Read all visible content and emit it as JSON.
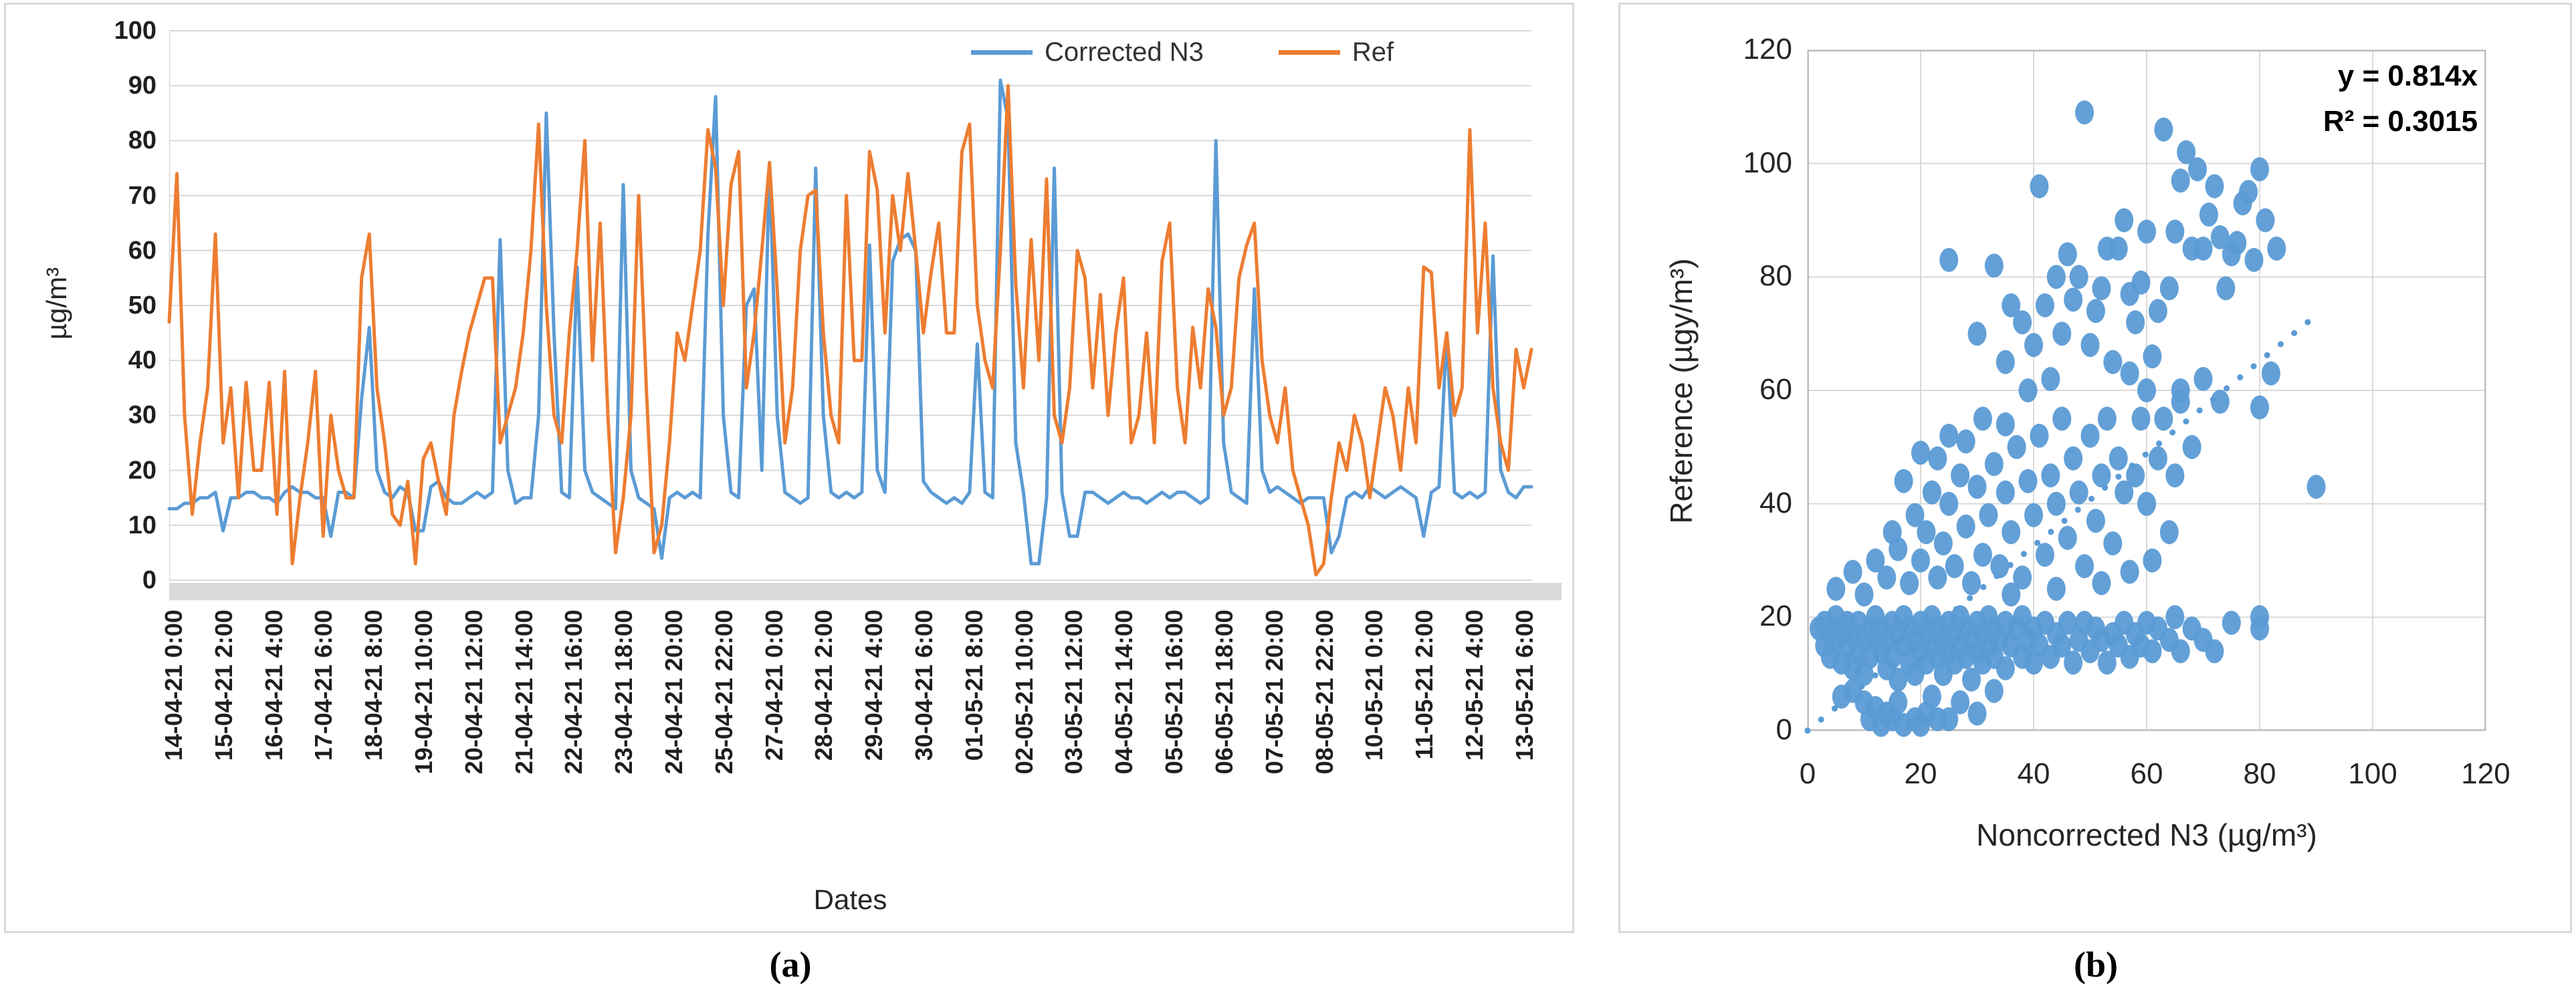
{
  "figure": {
    "panel_a_caption": "(a)",
    "panel_b_caption": "(b)"
  },
  "chart_data": [
    {
      "type": "line",
      "title": "",
      "xlabel": "Dates",
      "ylabel": "µg/m³",
      "ylim": [
        0,
        100
      ],
      "ytick_step": 10,
      "grid": "horizontal",
      "legend_position": "top",
      "x_tick_interval_hours": 26,
      "sample_step_hours": 4,
      "total_hours": 708,
      "x_tick_labels": [
        "14-04-21 0:00",
        "15-04-21 2:00",
        "16-04-21 4:00",
        "17-04-21 6:00",
        "18-04-21 8:00",
        "19-04-21 10:00",
        "20-04-21 12:00",
        "21-04-21 14:00",
        "22-04-21 16:00",
        "23-04-21 18:00",
        "24-04-21 20:00",
        "25-04-21 22:00",
        "27-04-21 0:00",
        "28-04-21 2:00",
        "29-04-21 4:00",
        "30-04-21 6:00",
        "01-05-21 8:00",
        "02-05-21 10:00",
        "03-05-21 12:00",
        "04-05-21 14:00",
        "05-05-21 16:00",
        "06-05-21 18:00",
        "07-05-21 20:00",
        "08-05-21 22:00",
        "10-05-21 0:00",
        "11-05-21 2:00",
        "12-05-21 4:00",
        "13-05-21 6:00"
      ],
      "series": [
        {
          "name": "Corrected N3",
          "color": "#5B9BD5",
          "values": [
            13,
            13,
            14,
            14,
            15,
            15,
            16,
            9,
            15,
            15,
            16,
            16,
            15,
            15,
            14,
            16,
            17,
            16,
            16,
            15,
            15,
            8,
            16,
            16,
            15,
            33,
            46,
            20,
            16,
            15,
            17,
            16,
            9,
            9,
            17,
            18,
            15,
            14,
            14,
            15,
            16,
            15,
            16,
            62,
            20,
            14,
            15,
            15,
            30,
            85,
            45,
            16,
            15,
            57,
            20,
            16,
            15,
            14,
            13,
            72,
            20,
            15,
            14,
            13,
            4,
            15,
            16,
            15,
            16,
            15,
            63,
            88,
            30,
            16,
            15,
            50,
            53,
            20,
            76,
            30,
            16,
            15,
            14,
            15,
            75,
            30,
            16,
            15,
            16,
            15,
            16,
            61,
            20,
            16,
            58,
            62,
            63,
            60,
            18,
            16,
            15,
            14,
            15,
            14,
            16,
            43,
            16,
            15,
            91,
            84,
            25,
            16,
            3,
            3,
            15,
            75,
            16,
            8,
            8,
            16,
            16,
            15,
            14,
            15,
            16,
            15,
            15,
            14,
            15,
            16,
            15,
            16,
            16,
            15,
            14,
            15,
            80,
            25,
            16,
            15,
            14,
            53,
            20,
            16,
            17,
            16,
            15,
            14,
            15,
            15,
            15,
            5,
            8,
            15,
            16,
            15,
            17,
            16,
            15,
            16,
            17,
            16,
            15,
            8,
            16,
            17,
            45,
            16,
            15,
            16,
            15,
            16,
            59,
            20,
            16,
            15,
            17,
            17
          ]
        },
        {
          "name": "Ref",
          "color": "#ED7D31",
          "values": [
            47,
            74,
            30,
            12,
            25,
            35,
            63,
            25,
            35,
            15,
            36,
            20,
            20,
            36,
            12,
            38,
            3,
            15,
            25,
            38,
            8,
            30,
            20,
            15,
            15,
            55,
            63,
            35,
            25,
            12,
            10,
            18,
            3,
            22,
            25,
            18,
            12,
            30,
            38,
            45,
            50,
            55,
            55,
            25,
            30,
            35,
            45,
            60,
            83,
            50,
            30,
            25,
            45,
            60,
            80,
            40,
            65,
            30,
            5,
            15,
            30,
            70,
            35,
            5,
            10,
            25,
            45,
            40,
            50,
            60,
            82,
            75,
            50,
            72,
            78,
            35,
            45,
            60,
            76,
            53,
            25,
            35,
            60,
            70,
            71,
            45,
            30,
            25,
            70,
            40,
            40,
            78,
            71,
            45,
            70,
            60,
            74,
            60,
            45,
            56,
            65,
            45,
            45,
            78,
            83,
            50,
            40,
            35,
            60,
            90,
            54,
            35,
            62,
            40,
            73,
            30,
            25,
            35,
            60,
            55,
            35,
            52,
            30,
            45,
            55,
            25,
            30,
            45,
            25,
            58,
            65,
            35,
            25,
            46,
            35,
            53,
            46,
            30,
            35,
            55,
            61,
            65,
            40,
            30,
            25,
            35,
            20,
            15,
            10,
            1,
            3,
            15,
            25,
            20,
            30,
            25,
            15,
            25,
            35,
            30,
            20,
            35,
            25,
            57,
            56,
            35,
            45,
            30,
            35,
            82,
            45,
            65,
            35,
            25,
            20,
            42,
            35,
            42
          ]
        }
      ]
    },
    {
      "type": "scatter",
      "xlabel": "Noncorrected N3 (µg/m³)",
      "ylabel": "Reference (µgy/m³)",
      "xlim": [
        0,
        120
      ],
      "ylim": [
        0,
        120
      ],
      "xticks": [
        0,
        20,
        40,
        60,
        80,
        100,
        120
      ],
      "yticks": [
        0,
        20,
        40,
        60,
        80,
        100,
        120
      ],
      "grid": "both",
      "marker_color": "#5B9BD5",
      "trendline": {
        "equation": "y = 0.814x",
        "r_squared": "R² = 0.3015",
        "slope": 0.814,
        "x_start": 0,
        "x_end": 90,
        "style": "dotted",
        "color": "#5B9BD5"
      },
      "points": [
        [
          2,
          18
        ],
        [
          3,
          15
        ],
        [
          3,
          19
        ],
        [
          4,
          13
        ],
        [
          4,
          17
        ],
        [
          5,
          16
        ],
        [
          5,
          20
        ],
        [
          6,
          12
        ],
        [
          6,
          18
        ],
        [
          7,
          15
        ],
        [
          7,
          19
        ],
        [
          8,
          11
        ],
        [
          8,
          17
        ],
        [
          9,
          14
        ],
        [
          9,
          19
        ],
        [
          10,
          16
        ],
        [
          10,
          10
        ],
        [
          11,
          18
        ],
        [
          11,
          13
        ],
        [
          12,
          16
        ],
        [
          12,
          20
        ],
        [
          13,
          14
        ],
        [
          13,
          18
        ],
        [
          14,
          11
        ],
        [
          14,
          16
        ],
        [
          15,
          19
        ],
        [
          15,
          13
        ],
        [
          16,
          17
        ],
        [
          16,
          9
        ],
        [
          17,
          15
        ],
        [
          17,
          20
        ],
        [
          18,
          12
        ],
        [
          18,
          18
        ],
        [
          19,
          16
        ],
        [
          19,
          10
        ],
        [
          20,
          14
        ],
        [
          20,
          19
        ],
        [
          21,
          17
        ],
        [
          21,
          12
        ],
        [
          22,
          15
        ],
        [
          22,
          20
        ],
        [
          23,
          13
        ],
        [
          23,
          18
        ],
        [
          24,
          16
        ],
        [
          24,
          10
        ],
        [
          25,
          14
        ],
        [
          25,
          19
        ],
        [
          26,
          17
        ],
        [
          26,
          12
        ],
        [
          27,
          15
        ],
        [
          27,
          20
        ],
        [
          28,
          13
        ],
        [
          28,
          18
        ],
        [
          29,
          16
        ],
        [
          29,
          9
        ],
        [
          30,
          14
        ],
        [
          30,
          19
        ],
        [
          31,
          17
        ],
        [
          31,
          12
        ],
        [
          32,
          15
        ],
        [
          32,
          20
        ],
        [
          33,
          13
        ],
        [
          33,
          18
        ],
        [
          34,
          16
        ],
        [
          35,
          11
        ],
        [
          35,
          19
        ],
        [
          36,
          15
        ],
        [
          37,
          18
        ],
        [
          38,
          13
        ],
        [
          38,
          20
        ],
        [
          39,
          16
        ],
        [
          40,
          12
        ],
        [
          40,
          18
        ],
        [
          41,
          15
        ],
        [
          42,
          19
        ],
        [
          43,
          13
        ],
        [
          44,
          17
        ],
        [
          45,
          15
        ],
        [
          46,
          19
        ],
        [
          47,
          12
        ],
        [
          48,
          16
        ],
        [
          49,
          19
        ],
        [
          50,
          14
        ],
        [
          51,
          18
        ],
        [
          52,
          16
        ],
        [
          53,
          12
        ],
        [
          54,
          17
        ],
        [
          55,
          15
        ],
        [
          56,
          19
        ],
        [
          57,
          13
        ],
        [
          58,
          17
        ],
        [
          59,
          15
        ],
        [
          60,
          19
        ],
        [
          61,
          14
        ],
        [
          62,
          18
        ],
        [
          64,
          16
        ],
        [
          65,
          20
        ],
        [
          66,
          14
        ],
        [
          68,
          18
        ],
        [
          70,
          16
        ],
        [
          75,
          19
        ],
        [
          80,
          18
        ],
        [
          72,
          14
        ],
        [
          11,
          2
        ],
        [
          13,
          1
        ],
        [
          14,
          3
        ],
        [
          15,
          2
        ],
        [
          17,
          1
        ],
        [
          19,
          2
        ],
        [
          20,
          1
        ],
        [
          21,
          3
        ],
        [
          23,
          2
        ],
        [
          25,
          2
        ],
        [
          27,
          5
        ],
        [
          30,
          3
        ],
        [
          8,
          7
        ],
        [
          6,
          6
        ],
        [
          10,
          5
        ],
        [
          16,
          5
        ],
        [
          22,
          6
        ],
        [
          33,
          7
        ],
        [
          12,
          4
        ],
        [
          5,
          25
        ],
        [
          8,
          28
        ],
        [
          10,
          24
        ],
        [
          12,
          30
        ],
        [
          14,
          27
        ],
        [
          15,
          35
        ],
        [
          16,
          32
        ],
        [
          17,
          44
        ],
        [
          18,
          26
        ],
        [
          19,
          38
        ],
        [
          20,
          30
        ],
        [
          20,
          49
        ],
        [
          21,
          35
        ],
        [
          22,
          42
        ],
        [
          23,
          27
        ],
        [
          23,
          48
        ],
        [
          24,
          33
        ],
        [
          25,
          40
        ],
        [
          25,
          52
        ],
        [
          26,
          29
        ],
        [
          27,
          45
        ],
        [
          28,
          36
        ],
        [
          28,
          51
        ],
        [
          29,
          26
        ],
        [
          30,
          43
        ],
        [
          31,
          31
        ],
        [
          31,
          55
        ],
        [
          32,
          38
        ],
        [
          33,
          47
        ],
        [
          34,
          29
        ],
        [
          35,
          42
        ],
        [
          35,
          54
        ],
        [
          36,
          35
        ],
        [
          37,
          50
        ],
        [
          38,
          27
        ],
        [
          39,
          44
        ],
        [
          40,
          38
        ],
        [
          41,
          52
        ],
        [
          42,
          31
        ],
        [
          43,
          45
        ],
        [
          44,
          40
        ],
        [
          45,
          55
        ],
        [
          46,
          34
        ],
        [
          47,
          48
        ],
        [
          48,
          42
        ],
        [
          49,
          29
        ],
        [
          50,
          52
        ],
        [
          51,
          37
        ],
        [
          52,
          45
        ],
        [
          53,
          55
        ],
        [
          54,
          33
        ],
        [
          55,
          48
        ],
        [
          56,
          42
        ],
        [
          57,
          63
        ],
        [
          58,
          45
        ],
        [
          59,
          55
        ],
        [
          60,
          40
        ],
        [
          60,
          60
        ],
        [
          62,
          48
        ],
        [
          63,
          55
        ],
        [
          64,
          35
        ],
        [
          65,
          45
        ],
        [
          66,
          58
        ],
        [
          68,
          50
        ],
        [
          80,
          57
        ],
        [
          90,
          43
        ],
        [
          80,
          20
        ],
        [
          57,
          28
        ],
        [
          44,
          25
        ],
        [
          36,
          24
        ],
        [
          52,
          26
        ],
        [
          61,
          30
        ],
        [
          25,
          83
        ],
        [
          30,
          70
        ],
        [
          33,
          82
        ],
        [
          35,
          65
        ],
        [
          36,
          75
        ],
        [
          38,
          72
        ],
        [
          39,
          60
        ],
        [
          40,
          68
        ],
        [
          41,
          96
        ],
        [
          42,
          75
        ],
        [
          43,
          62
        ],
        [
          44,
          80
        ],
        [
          45,
          70
        ],
        [
          46,
          84
        ],
        [
          47,
          76
        ],
        [
          48,
          80
        ],
        [
          49,
          109
        ],
        [
          50,
          68
        ],
        [
          51,
          74
        ],
        [
          52,
          78
        ],
        [
          53,
          85
        ],
        [
          54,
          65
        ],
        [
          55,
          85
        ],
        [
          56,
          90
        ],
        [
          57,
          77
        ],
        [
          58,
          72
        ],
        [
          59,
          79
        ],
        [
          60,
          88
        ],
        [
          61,
          66
        ],
        [
          62,
          74
        ],
        [
          63,
          106
        ],
        [
          64,
          78
        ],
        [
          65,
          88
        ],
        [
          66,
          97
        ],
        [
          67,
          102
        ],
        [
          68,
          85
        ],
        [
          69,
          99
        ],
        [
          70,
          85
        ],
        [
          71,
          91
        ],
        [
          72,
          96
        ],
        [
          73,
          87
        ],
        [
          74,
          78
        ],
        [
          75,
          84
        ],
        [
          76,
          86
        ],
        [
          77,
          93
        ],
        [
          78,
          95
        ],
        [
          79,
          83
        ],
        [
          80,
          99
        ],
        [
          81,
          90
        ],
        [
          82,
          63
        ],
        [
          83,
          85
        ],
        [
          66,
          60
        ],
        [
          70,
          62
        ],
        [
          73,
          58
        ]
      ]
    }
  ]
}
